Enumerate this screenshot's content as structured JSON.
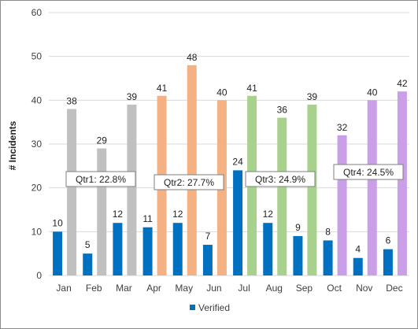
{
  "chart_data": {
    "type": "bar",
    "ylabel": "# Incidents",
    "ylim": [
      0,
      60
    ],
    "yticks": [
      0,
      10,
      20,
      30,
      40,
      50,
      60
    ],
    "grid": true,
    "legend_position": "bottom-center",
    "categories": [
      "Jan",
      "Feb",
      "Mar",
      "Apr",
      "May",
      "Jun",
      "Jul",
      "Aug",
      "Sep",
      "Oct",
      "Nov",
      "Dec"
    ],
    "series": [
      {
        "values": [
          38,
          29,
          39,
          41,
          48,
          40,
          41,
          36,
          39,
          32,
          40,
          42
        ],
        "colors_by_quarter": [
          "#c0c0c0",
          "#f4b183",
          "#a9d18e",
          "#c9a0e8"
        ]
      },
      {
        "name": "Verified",
        "values": [
          10,
          5,
          12,
          11,
          12,
          7,
          24,
          12,
          9,
          8,
          4,
          6
        ],
        "color": "#0070c0"
      }
    ],
    "annotations": [
      {
        "text": "Qtr1: 22.8%",
        "quarter": 1
      },
      {
        "text": "Qtr2: 27.7%",
        "quarter": 2
      },
      {
        "text": "Qtr3: 24.9%",
        "quarter": 3
      },
      {
        "text": "Qtr4: 24.5%",
        "quarter": 4
      }
    ]
  }
}
